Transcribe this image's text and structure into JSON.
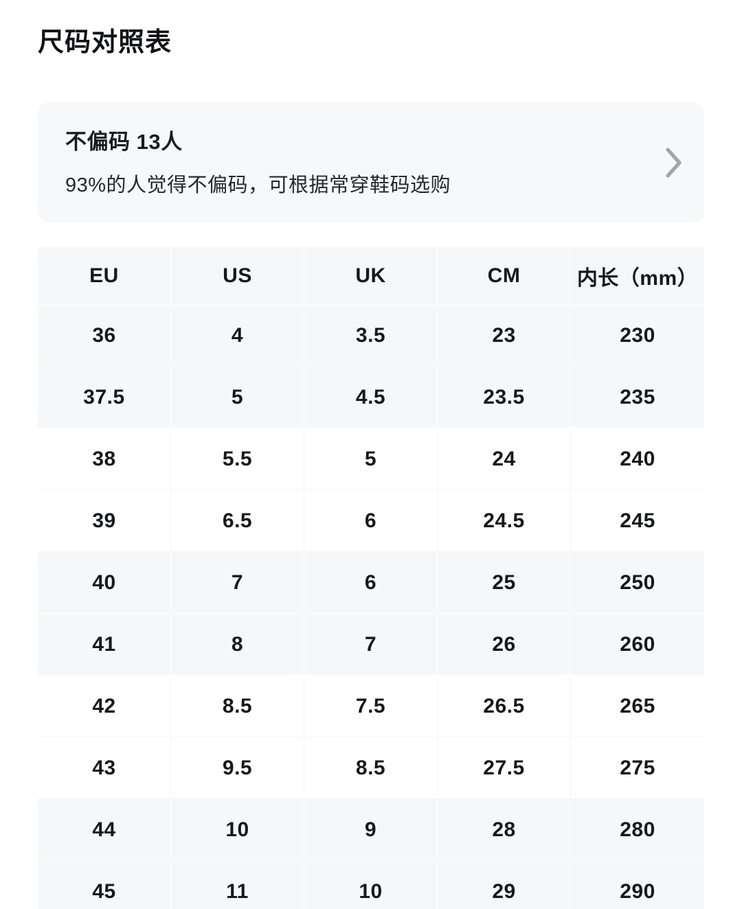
{
  "page": {
    "title": "尺码对照表"
  },
  "fit_card": {
    "title": "不偏码 13人",
    "subtitle": "93%的人觉得不偏码，可根据常穿鞋码选购"
  },
  "size_table": {
    "columns": [
      "EU",
      "US",
      "UK",
      "CM",
      "内长（mm）"
    ],
    "rows": [
      [
        "36",
        "4",
        "3.5",
        "23",
        "230"
      ],
      [
        "37.5",
        "5",
        "4.5",
        "23.5",
        "235"
      ],
      [
        "38",
        "5.5",
        "5",
        "24",
        "240"
      ],
      [
        "39",
        "6.5",
        "6",
        "24.5",
        "245"
      ],
      [
        "40",
        "7",
        "6",
        "25",
        "250"
      ],
      [
        "41",
        "8",
        "7",
        "26",
        "260"
      ],
      [
        "42",
        "8.5",
        "7.5",
        "26.5",
        "265"
      ],
      [
        "43",
        "9.5",
        "8.5",
        "27.5",
        "275"
      ],
      [
        "44",
        "10",
        "9",
        "28",
        "280"
      ],
      [
        "45",
        "11",
        "10",
        "29",
        "290"
      ]
    ]
  },
  "colors": {
    "row_stripe": "#f6f7f9",
    "card_bg": "#f7f8fa",
    "text": "#17181a",
    "chevron": "#a3a4aa"
  }
}
